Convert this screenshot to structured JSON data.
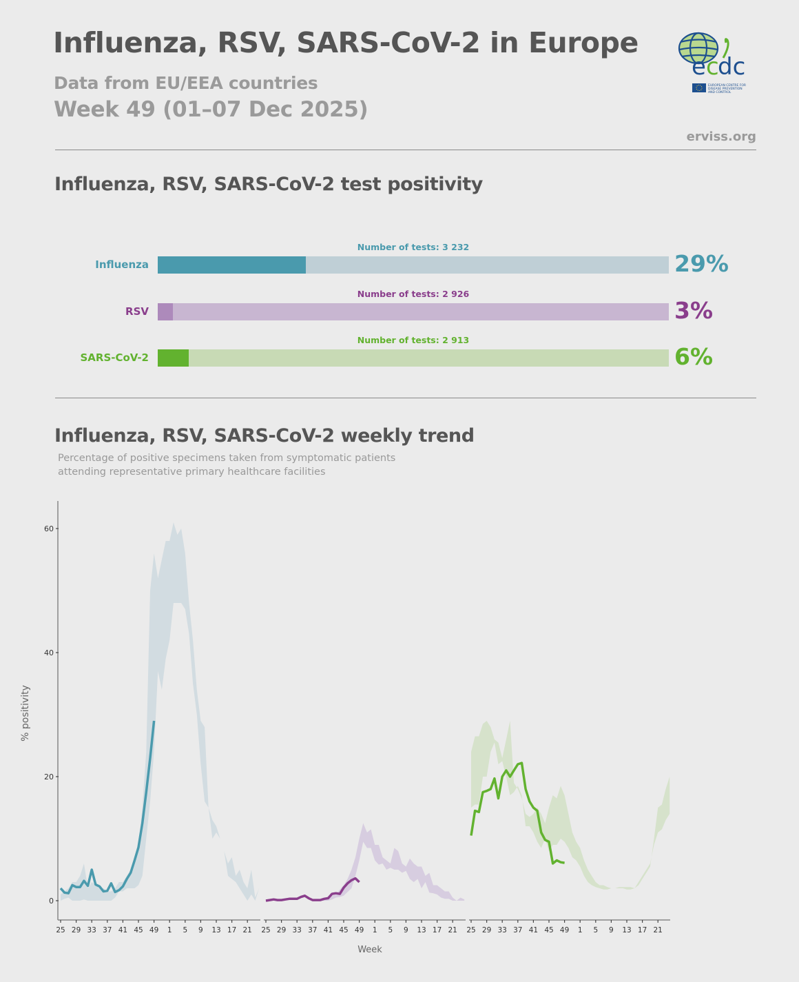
{
  "header": {
    "title": "Influenza, RSV, SARS-CoV-2 in Europe",
    "subtitle": "Data from EU/EEA countries",
    "week": "Week 49 (01–07 Dec 2025)",
    "site": "erviss.org",
    "logo": {
      "text": "ecdc",
      "tagline": "EUROPEAN CENTRE FOR DISEASE PREVENTION AND CONTROL"
    }
  },
  "positivity": {
    "title": "Influenza, RSV, SARS-CoV-2 test positivity",
    "rows": [
      {
        "label": "Influenza",
        "tests": "Number of tests: 3 232",
        "percent_label": "29%",
        "percent": 29,
        "color": "#4a9aad",
        "track": "#bfcfd6",
        "bar": "#4a9aad"
      },
      {
        "label": "RSV",
        "tests": "Number of tests: 2 926",
        "percent_label": "3%",
        "percent": 3,
        "color": "#8a3e8c",
        "track": "#c8b6d1",
        "bar": "#ad8abb"
      },
      {
        "label": "SARS-CoV-2",
        "tests": "Number of tests: 2 913",
        "percent_label": "6%",
        "percent": 6,
        "color": "#62b22f",
        "track": "#c8dab5",
        "bar": "#62b22f"
      }
    ]
  },
  "trend": {
    "title": "Influenza, RSV, SARS-CoV-2 weekly trend",
    "note_line1": "Percentage of positive specimens taken from symptomatic patients",
    "note_line2": "attending representative primary healthcare facilities"
  },
  "chart_data": {
    "type": "line",
    "ylabel": "% positivity",
    "xlabel": "Week",
    "ylim": [
      0,
      64
    ],
    "yticks": [
      "0",
      "20",
      "40",
      "60"
    ],
    "xtick_labels": [
      "25",
      "29",
      "33",
      "37",
      "41",
      "45",
      "49",
      "1",
      "5",
      "9",
      "13",
      "17",
      "21"
    ],
    "weeks": [
      25,
      26,
      27,
      28,
      29,
      30,
      31,
      32,
      33,
      34,
      35,
      36,
      37,
      38,
      39,
      40,
      41,
      42,
      43,
      44,
      45,
      46,
      47,
      48,
      49,
      50,
      51,
      52,
      1,
      2,
      3,
      4,
      5,
      6,
      7,
      8,
      9,
      10,
      11,
      12,
      13,
      14,
      15,
      16,
      17,
      18,
      19,
      20,
      21,
      22,
      23,
      24
    ],
    "panels": [
      {
        "pathogen": "Influenza",
        "line_color": "#4a9aad",
        "band_color": "#d2dce1",
        "current": [
          2,
          1.3,
          1.2,
          2.5,
          2.2,
          2.2,
          3.2,
          2.4,
          5,
          2.6,
          2.3,
          1.5,
          1.6,
          2.8,
          1.4,
          1.7,
          2.3,
          3.5,
          4.5,
          6.5,
          8.6,
          12.5,
          17.5,
          23,
          29
        ],
        "band_upper": [
          1,
          1.5,
          2,
          3,
          3,
          4,
          6,
          2,
          3,
          2.5,
          2,
          2,
          1.5,
          1.5,
          2,
          3,
          3,
          4,
          5,
          6,
          9,
          15,
          24,
          50,
          56,
          52,
          55,
          58,
          58,
          61,
          59,
          60,
          56,
          48,
          42,
          34,
          29,
          28,
          15,
          13,
          12,
          10,
          8,
          6,
          7,
          4,
          5,
          3,
          2,
          5,
          0.5,
          2
        ],
        "band_lower": [
          0,
          0.3,
          0.5,
          0,
          0,
          0,
          0.2,
          0,
          0,
          0,
          0,
          0,
          0,
          0,
          0.5,
          1.5,
          1.5,
          2,
          2,
          2,
          2.5,
          4,
          10,
          16,
          24,
          37,
          34,
          39,
          42,
          48,
          48,
          48,
          47,
          43,
          35,
          30,
          22,
          16,
          15,
          10,
          11,
          10,
          8,
          4,
          3.5,
          3,
          2,
          1,
          0,
          1,
          0,
          2
        ]
      },
      {
        "pathogen": "RSV",
        "line_color": "#8a3e8c",
        "band_color": "#d7cde0",
        "current": [
          0,
          0.1,
          0.2,
          0.1,
          0.1,
          0.2,
          0.3,
          0.3,
          0.3,
          0.6,
          0.8,
          0.4,
          0.1,
          0.1,
          0.1,
          0.3,
          0.4,
          1.1,
          1.2,
          1.1,
          2.1,
          2.8,
          3.3,
          3.6,
          3.0
        ],
        "band_upper": [
          0,
          0,
          0,
          0,
          0,
          0,
          0,
          0,
          0,
          0,
          0,
          0,
          0,
          0,
          0.1,
          0.2,
          0.5,
          0.8,
          1,
          1.8,
          2.5,
          3.5,
          5,
          7,
          10,
          12.5,
          11,
          11.5,
          9,
          9,
          7,
          6.5,
          6,
          8.5,
          8,
          6,
          5.5,
          6.8,
          6,
          5.5,
          5.5,
          4,
          4.5,
          2.5,
          2.5,
          2,
          1.5,
          1.5,
          0.5,
          0,
          0.5,
          0.2
        ],
        "band_lower": [
          0,
          0,
          0,
          0,
          0,
          0,
          0,
          0,
          0,
          0,
          0,
          0,
          0,
          0,
          0,
          0,
          0,
          0.2,
          0.5,
          0.6,
          0.8,
          1.4,
          2,
          4,
          6.5,
          9.5,
          8.5,
          8.5,
          6.5,
          5.8,
          6,
          5,
          5.3,
          5,
          5,
          4.5,
          4.8,
          3.5,
          3,
          3.5,
          2,
          3,
          1.3,
          1.2,
          1,
          0.5,
          0.3,
          0.3,
          0,
          0,
          0,
          0
        ]
      },
      {
        "pathogen": "SARS-CoV-2",
        "line_color": "#62b22f",
        "band_color": "#d6e2cb",
        "current": [
          10.5,
          14.5,
          14.3,
          17.5,
          17.7,
          18,
          19.7,
          16.5,
          20,
          21,
          20,
          21,
          22,
          22.2,
          18,
          16,
          15,
          14.5,
          11,
          9.8,
          9.5,
          6,
          6.5,
          6.2,
          6.1
        ],
        "band_upper": [
          24,
          26.5,
          26.5,
          28.5,
          29,
          28,
          26,
          25.5,
          23,
          26,
          29,
          19,
          18,
          16.5,
          14,
          13.5,
          14,
          15,
          14,
          12.5,
          15,
          17,
          16.5,
          18.5,
          17,
          14,
          11,
          9.5,
          8.5,
          6.5,
          5,
          4,
          3,
          2.5,
          2.5,
          2.2,
          2,
          2,
          2.2,
          2.2,
          2.2,
          2.2,
          2,
          2.5,
          3.5,
          4.5,
          5.5,
          10,
          15,
          15.5,
          18,
          20
        ],
        "band_lower": [
          15,
          15.5,
          15.5,
          20,
          20,
          24,
          25.5,
          22,
          22.5,
          20,
          17,
          17.5,
          18.5,
          17,
          12,
          12,
          11,
          9.5,
          8.5,
          10,
          8,
          9,
          9,
          10,
          9.5,
          8.5,
          7,
          6.5,
          5.5,
          4,
          3,
          2.5,
          2.2,
          2,
          1.8,
          1.8,
          2,
          2,
          2,
          2,
          1.8,
          1.8,
          2,
          3,
          4,
          5,
          6,
          9,
          11,
          11.5,
          13,
          14
        ]
      }
    ]
  }
}
